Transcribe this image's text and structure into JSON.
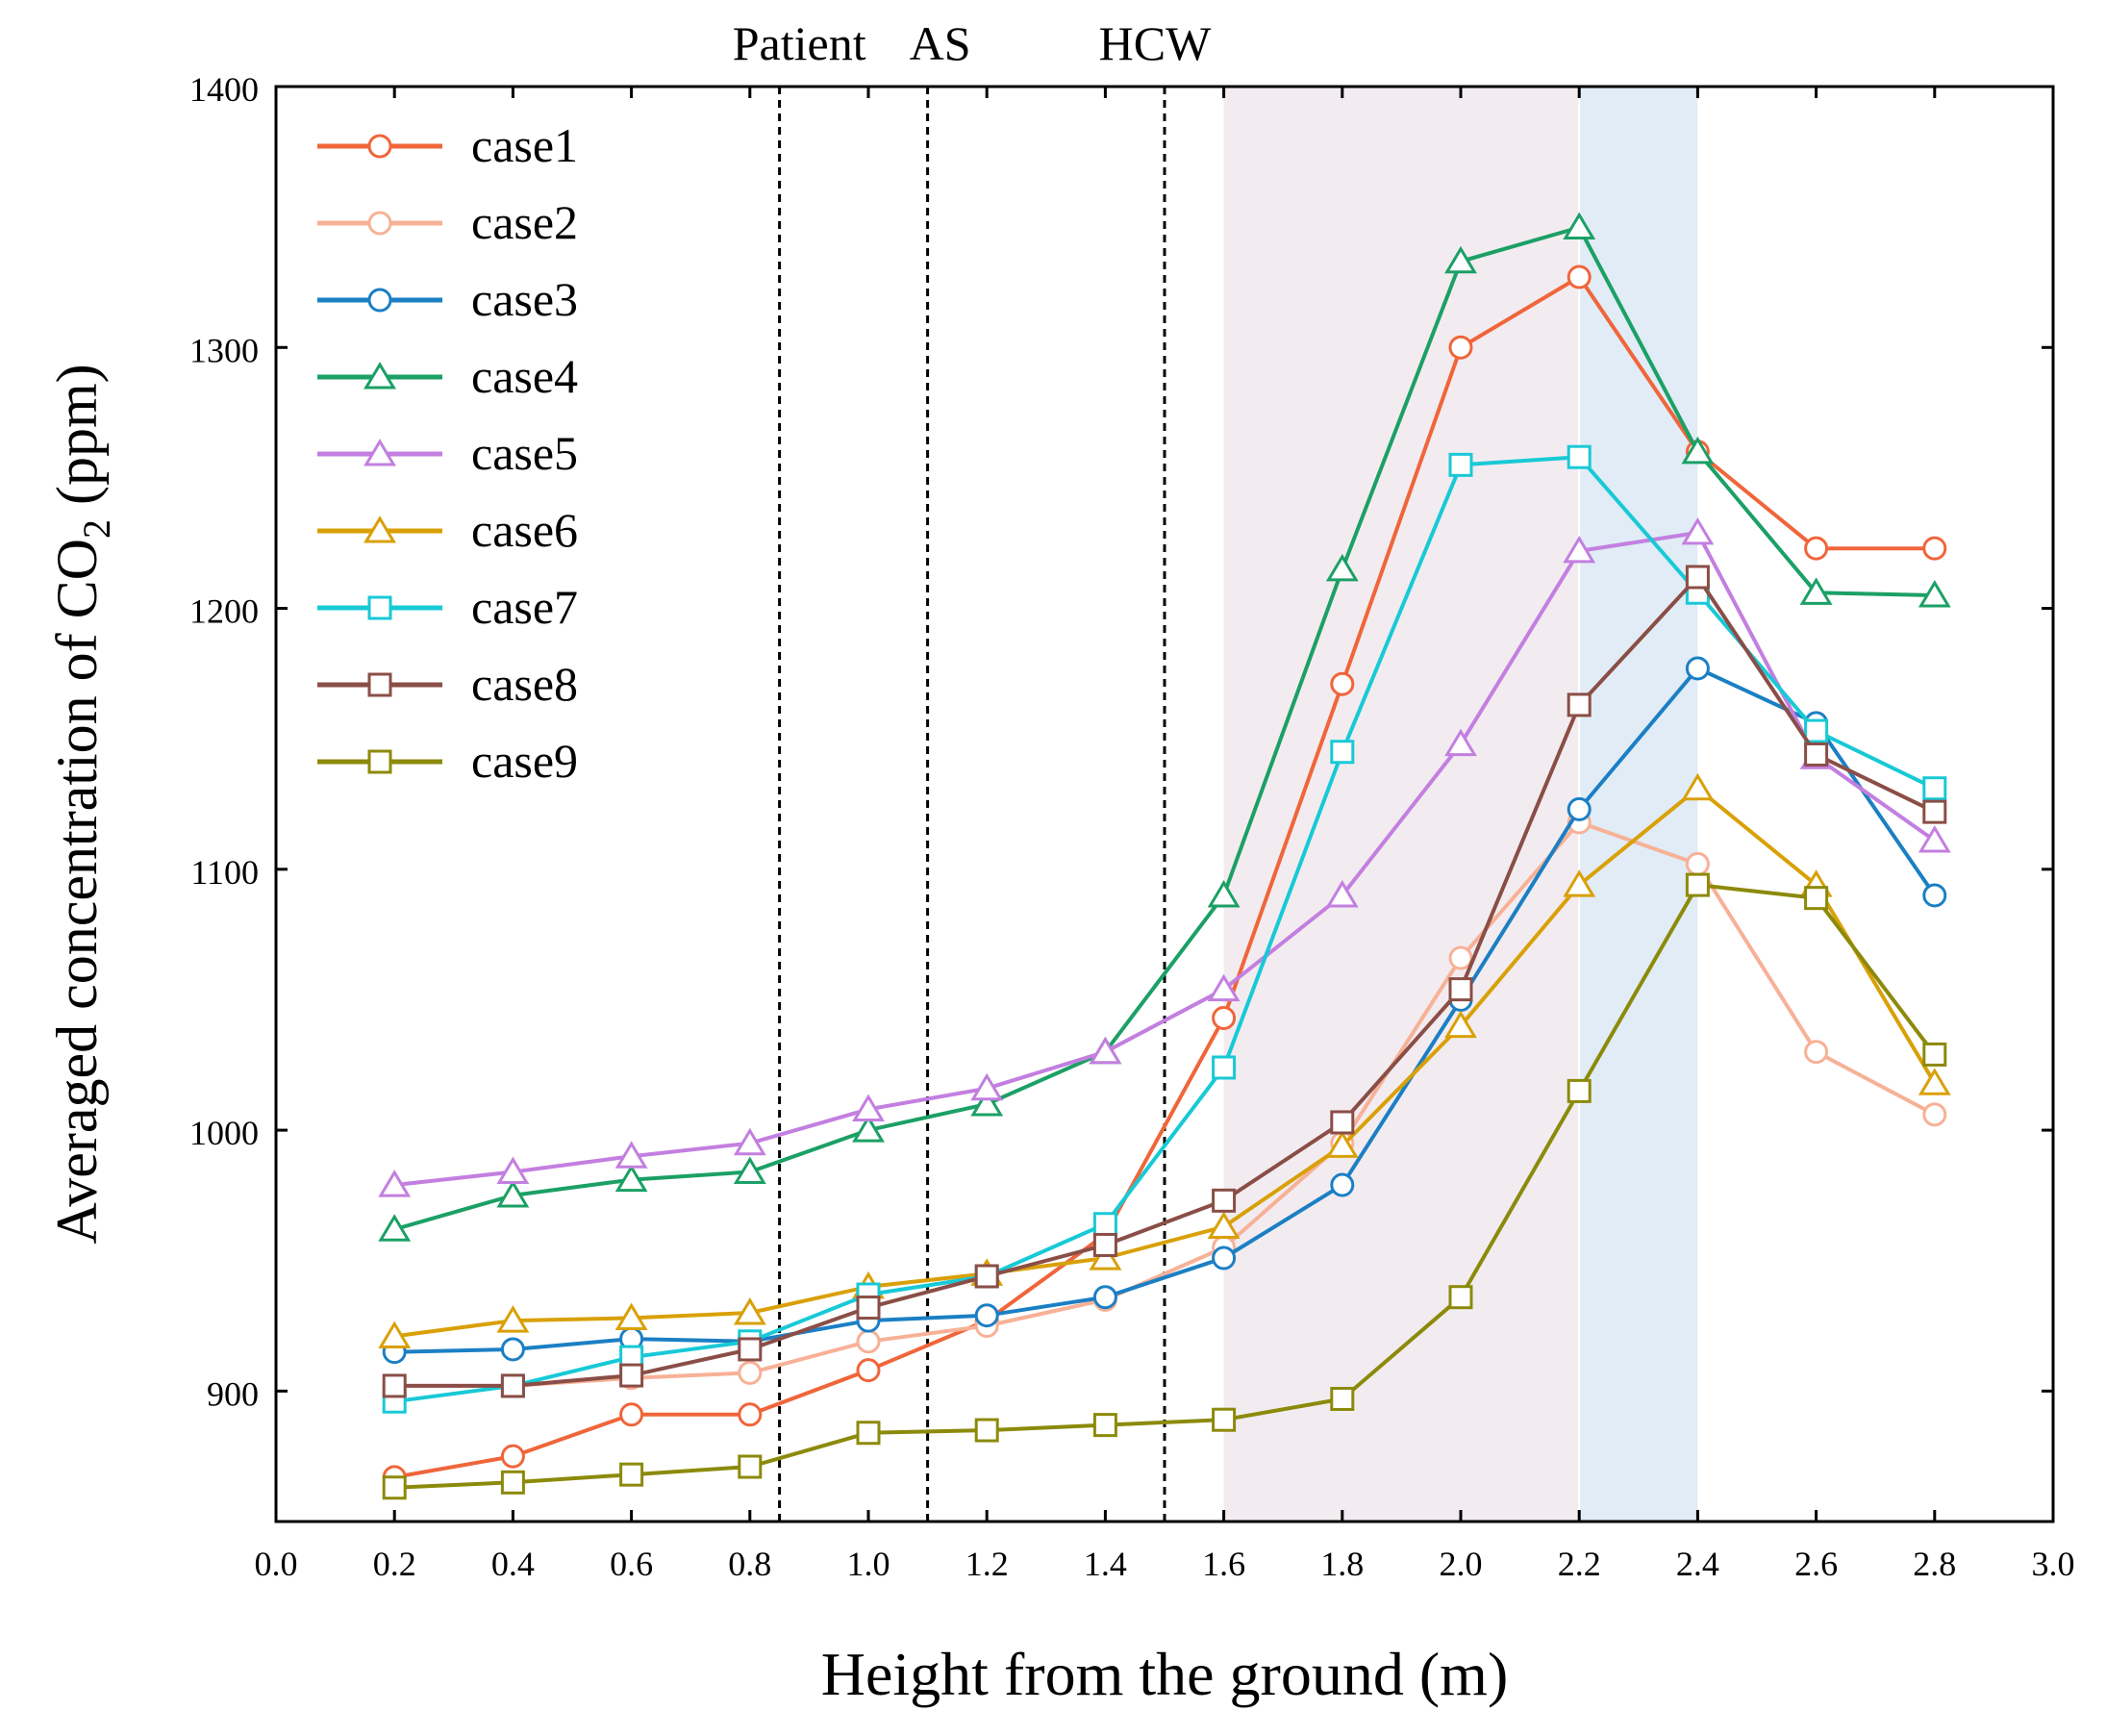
{
  "chart_data": {
    "type": "line",
    "title": "",
    "xlabel": "Height from the ground (m)",
    "ylabel": {
      "prefix": "Averaged concentration of CO",
      "subscript": "2",
      "suffix": " (ppm)"
    },
    "xlim": [
      0.0,
      3.0
    ],
    "ylim": [
      850,
      1400
    ],
    "xticks": [
      "0.0",
      "0.2",
      "0.4",
      "0.6",
      "0.8",
      "1.0",
      "1.2",
      "1.4",
      "1.6",
      "1.8",
      "2.0",
      "2.2",
      "2.4",
      "2.6",
      "2.8",
      "3.0"
    ],
    "yticks": [
      "900",
      "1000",
      "1100",
      "1200",
      "1300",
      "1400"
    ],
    "x": [
      0.2,
      0.4,
      0.6,
      0.8,
      1.0,
      1.2,
      1.4,
      1.6,
      1.8,
      2.0,
      2.2,
      2.4,
      2.6,
      2.8
    ],
    "legend_position": "top-left",
    "series": [
      {
        "name": "case1",
        "marker": "circle",
        "color": "#F0653A",
        "values": [
          867,
          875,
          891,
          891,
          908,
          927,
          960,
          1043,
          1171,
          1300,
          1327,
          1260,
          1223,
          1223
        ]
      },
      {
        "name": "case2",
        "marker": "circle",
        "color": "#F7B196",
        "values": [
          902,
          902,
          905,
          907,
          919,
          925,
          935,
          955,
          995,
          1066,
          1118,
          1102,
          1030,
          1006
        ]
      },
      {
        "name": "case3",
        "marker": "circle",
        "color": "#1B7FC4",
        "values": [
          915,
          916,
          920,
          919,
          927,
          929,
          936,
          951,
          979,
          1050,
          1123,
          1177,
          1156,
          1090
        ]
      },
      {
        "name": "case4",
        "marker": "triangle",
        "color": "#1BA065",
        "values": [
          962,
          975,
          981,
          984,
          1000,
          1010,
          1030,
          1090,
          1215,
          1333,
          1346,
          1260,
          1206,
          1205
        ]
      },
      {
        "name": "case5",
        "marker": "triangle",
        "color": "#C37FE0",
        "values": [
          979,
          984,
          990,
          995,
          1008,
          1016,
          1030,
          1054,
          1090,
          1148,
          1222,
          1229,
          1143,
          1111
        ]
      },
      {
        "name": "case6",
        "marker": "triangle",
        "color": "#D9A007",
        "values": [
          921,
          927,
          928,
          930,
          940,
          945,
          951,
          963,
          994,
          1040,
          1094,
          1131,
          1094,
          1018
        ]
      },
      {
        "name": "case7",
        "marker": "square",
        "color": "#18C9D6",
        "values": [
          896,
          902,
          913,
          919,
          937,
          944,
          964,
          1024,
          1145,
          1255,
          1258,
          1206,
          1153,
          1131
        ]
      },
      {
        "name": "case8",
        "marker": "square",
        "color": "#8A4E46",
        "values": [
          902,
          902,
          906,
          916,
          932,
          944,
          956,
          973,
          1003,
          1054,
          1163,
          1212,
          1144,
          1122
        ]
      },
      {
        "name": "case9",
        "marker": "square",
        "color": "#8C8A0A",
        "values": [
          863,
          865,
          868,
          871,
          884,
          885,
          887,
          889,
          897,
          936,
          1015,
          1094,
          1089,
          1029
        ]
      }
    ],
    "vertical_lines": [
      {
        "x": 0.85,
        "label": "Patient"
      },
      {
        "x": 1.1,
        "label": "AS"
      },
      {
        "x": 1.5,
        "label": "HCW"
      }
    ],
    "shaded_regions": [
      {
        "x0": 1.6,
        "x1": 2.2,
        "color": "#F2ECF1"
      },
      {
        "x0": 2.2,
        "x1": 2.4,
        "color": "#E1ECF6"
      }
    ]
  }
}
